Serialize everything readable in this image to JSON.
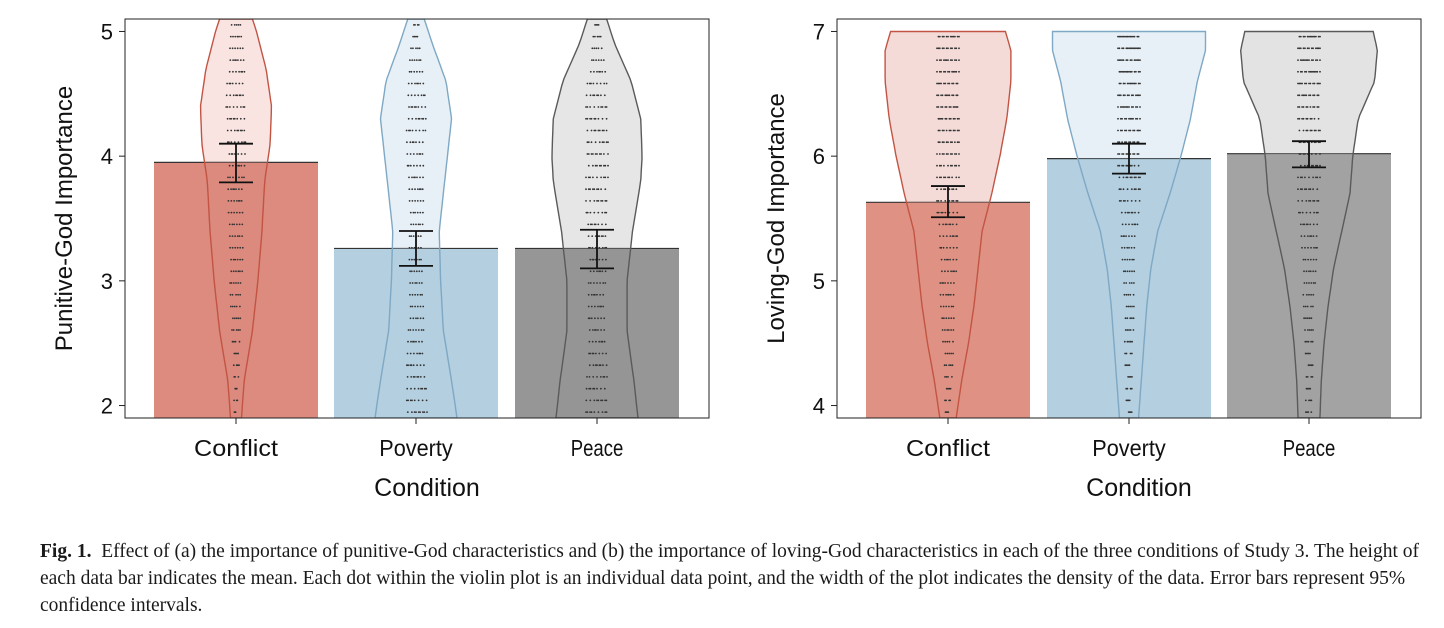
{
  "chart_data": [
    {
      "type": "bar",
      "overlay": "violin",
      "categories": [
        "Conflict",
        "Poverty",
        "Peace"
      ],
      "values": [
        3.95,
        3.26,
        3.26
      ],
      "ci": [
        [
          3.79,
          4.1
        ],
        [
          3.12,
          3.4
        ],
        [
          3.1,
          3.41
        ]
      ],
      "xlabel": "Condition",
      "ylabel": "Punitive-God Importance",
      "ylim": [
        1.9,
        5.1
      ],
      "yticks": [
        2,
        3,
        4,
        5
      ],
      "violins": [
        {
          "y": [
            1.9,
            2.2,
            2.6,
            3.0,
            3.4,
            3.8,
            4.1,
            4.4,
            4.7,
            5.0,
            5.1
          ],
          "density": [
            0.04,
            0.06,
            0.12,
            0.16,
            0.19,
            0.21,
            0.25,
            0.26,
            0.22,
            0.15,
            0.12
          ]
        },
        {
          "y": [
            1.9,
            2.2,
            2.6,
            3.0,
            3.4,
            3.7,
            4.0,
            4.3,
            4.6,
            4.9,
            5.1
          ],
          "density": [
            0.3,
            0.26,
            0.2,
            0.18,
            0.17,
            0.2,
            0.23,
            0.26,
            0.22,
            0.12,
            0.06
          ]
        },
        {
          "y": [
            1.9,
            2.2,
            2.6,
            3.0,
            3.4,
            3.8,
            4.0,
            4.3,
            4.6,
            4.9,
            5.1
          ],
          "density": [
            0.3,
            0.27,
            0.22,
            0.22,
            0.26,
            0.32,
            0.33,
            0.32,
            0.25,
            0.13,
            0.07
          ]
        }
      ],
      "colors": {
        "fill": [
          "#dc8b7e",
          "#b3cfe0",
          "#969696"
        ],
        "violin_fill": [
          "#f9e4e1",
          "#e7f0f7",
          "#e6e6e6"
        ],
        "violin_stroke": [
          "#c25443",
          "#7ea8c4",
          "#5a5a5a"
        ]
      }
    },
    {
      "type": "bar",
      "overlay": "violin",
      "categories": [
        "Conflict",
        "Poverty",
        "Peace"
      ],
      "values": [
        5.63,
        5.98,
        6.02
      ],
      "ci": [
        [
          5.51,
          5.76
        ],
        [
          5.86,
          6.1
        ],
        [
          5.91,
          6.12
        ]
      ],
      "xlabel": "Condition",
      "ylabel": "Loving-God Importance",
      "ylim": [
        3.9,
        7.1
      ],
      "yticks": [
        4,
        5,
        6,
        7
      ],
      "violins": [
        {
          "y": [
            3.9,
            4.2,
            4.5,
            4.8,
            5.1,
            5.4,
            5.7,
            6.0,
            6.3,
            6.6,
            6.85,
            7.0
          ],
          "density": [
            0.06,
            0.1,
            0.15,
            0.19,
            0.22,
            0.25,
            0.32,
            0.38,
            0.43,
            0.46,
            0.46,
            0.42
          ]
        },
        {
          "y": [
            3.9,
            4.2,
            4.5,
            4.8,
            5.1,
            5.4,
            5.7,
            6.0,
            6.3,
            6.6,
            6.85,
            7.0
          ],
          "density": [
            0.07,
            0.09,
            0.11,
            0.13,
            0.16,
            0.21,
            0.3,
            0.38,
            0.45,
            0.5,
            0.56,
            0.56
          ]
        },
        {
          "y": [
            3.9,
            4.2,
            4.5,
            4.8,
            5.1,
            5.4,
            5.7,
            6.0,
            6.3,
            6.6,
            6.85,
            7.0
          ],
          "density": [
            0.08,
            0.09,
            0.11,
            0.14,
            0.18,
            0.24,
            0.3,
            0.32,
            0.36,
            0.48,
            0.5,
            0.47
          ]
        }
      ],
      "colors": {
        "fill": [
          "#df9284",
          "#b3cfe0",
          "#a3a3a3"
        ],
        "violin_fill": [
          "#f4dbd7",
          "#e7f0f7",
          "#e3e3e3"
        ],
        "violin_stroke": [
          "#c25443",
          "#7ea8c4",
          "#5a5a5a"
        ]
      }
    }
  ],
  "caption": {
    "label": "Fig. 1.",
    "text": "Effect of (a) the importance of punitive-God characteristics and (b) the importance of loving-God characteristics in each of the three conditions of Study 3. The height of each data bar indicates the mean. Each dot within the violin plot is an individual data point, and the width of the plot indicates the density of the data. Error bars represent 95% confidence intervals."
  }
}
